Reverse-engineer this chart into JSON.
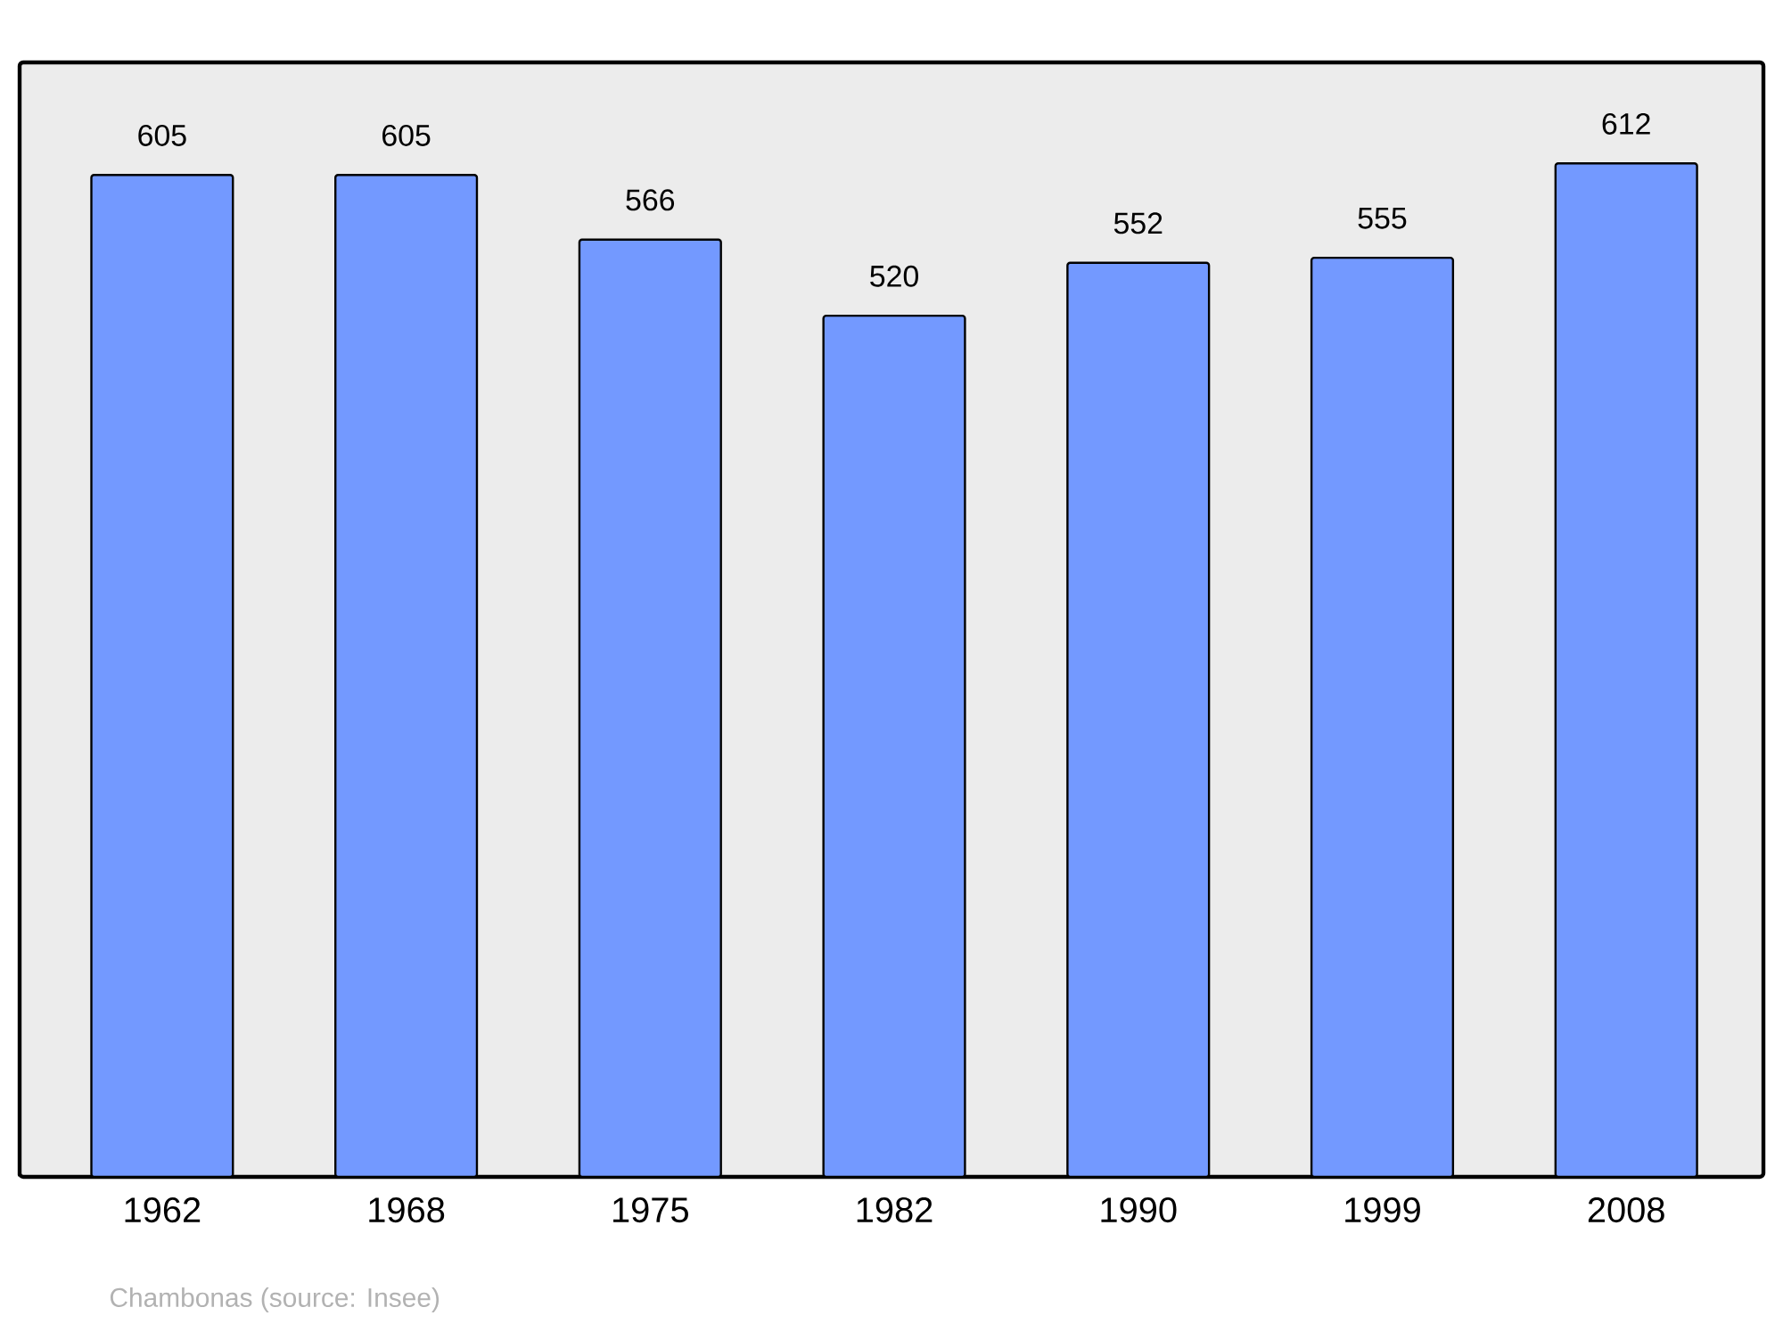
{
  "chart_data": {
    "type": "bar",
    "categories": [
      "1962",
      "1968",
      "1975",
      "1982",
      "1990",
      "1999",
      "2008"
    ],
    "values": [
      605,
      605,
      566,
      520,
      552,
      555,
      612
    ],
    "color": "#7399ff",
    "ylim": [
      0,
      673
    ],
    "data_labels": true,
    "grid": false,
    "annotations": [
      "Chambonas    (source: Insee)"
    ]
  }
}
